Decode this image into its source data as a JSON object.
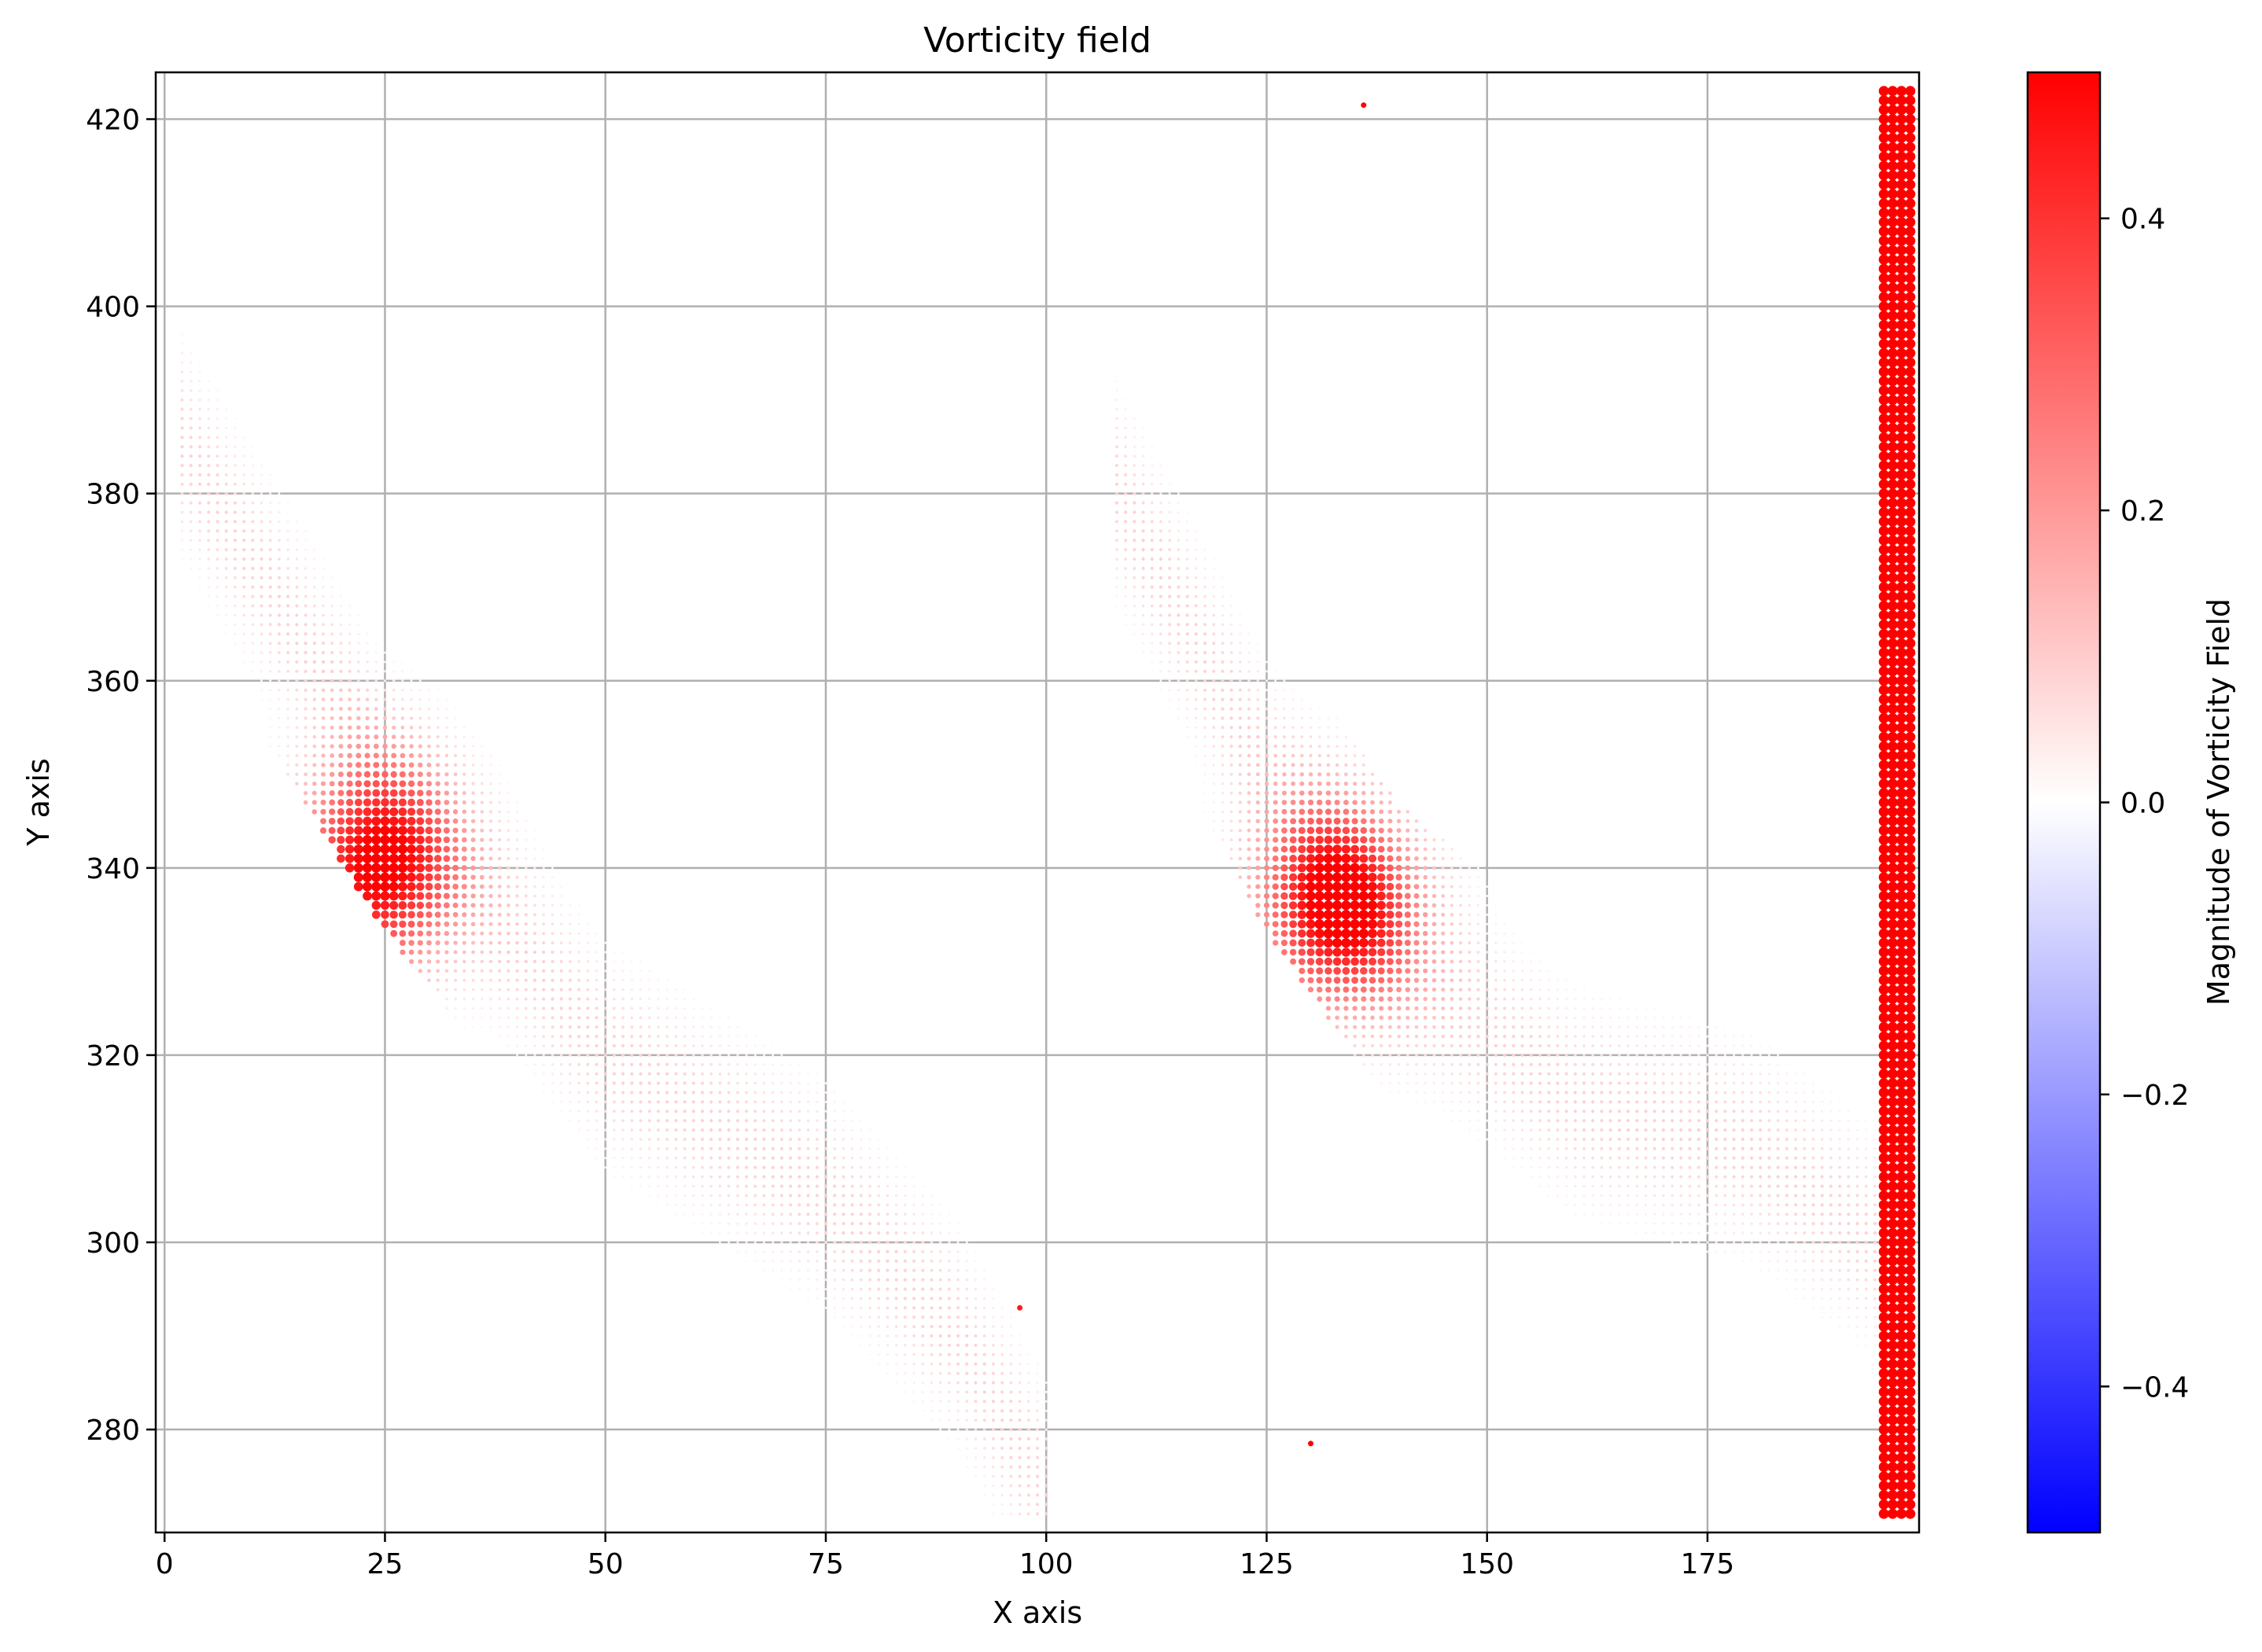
{
  "chart_data": {
    "type": "scatter",
    "title": "Vorticity field",
    "xlabel": "X axis",
    "ylabel": "Y axis",
    "xlim": [
      -1,
      199
    ],
    "ylim": [
      269,
      425
    ],
    "xticks": [
      0,
      25,
      50,
      75,
      100,
      125,
      150,
      175
    ],
    "yticks": [
      280,
      300,
      320,
      340,
      360,
      380,
      400,
      420
    ],
    "grid": true,
    "colorbar": {
      "label": "Magnitude of Vorticity Field",
      "range": [
        -0.5,
        0.5
      ],
      "ticks": [
        0.4,
        0.2,
        0.0,
        -0.2,
        -0.4
      ],
      "tick_labels": [
        "0.4",
        "0.2",
        "0.0",
        "−0.2",
        "−0.4"
      ],
      "colormap": "bwr",
      "colors": {
        "low": "#0000ff",
        "mid": "#ffffff",
        "high": "#ff0000"
      }
    },
    "fields": [
      {
        "name": "left band",
        "path_x": [
          2,
          25,
          50,
          75,
          90,
          100
        ],
        "path_y": [
          385,
          350,
          320,
          305,
          290,
          273
        ],
        "half_width": 12,
        "peak_x": 24,
        "peak_y": 340,
        "peak_value": 0.5
      },
      {
        "name": "middle band",
        "path_x": [
          108,
          125,
          140,
          160,
          180,
          194
        ],
        "path_y": [
          380,
          350,
          330,
          315,
          310,
          300
        ],
        "half_width": 12,
        "peak_x": 133,
        "peak_y": 336,
        "peak_value": 0.5
      },
      {
        "name": "right edge column",
        "x_range": [
          195,
          198
        ],
        "y_range": [
          271,
          423
        ],
        "value": 0.5
      }
    ],
    "isolated_points": [
      {
        "x": 136,
        "y": 421.5,
        "value": 0.5
      },
      {
        "x": 97,
        "y": 293,
        "value": 0.45
      },
      {
        "x": 130,
        "y": 278.5,
        "value": 0.5
      },
      {
        "x": 195,
        "y": 271,
        "value": 0.5
      }
    ]
  }
}
